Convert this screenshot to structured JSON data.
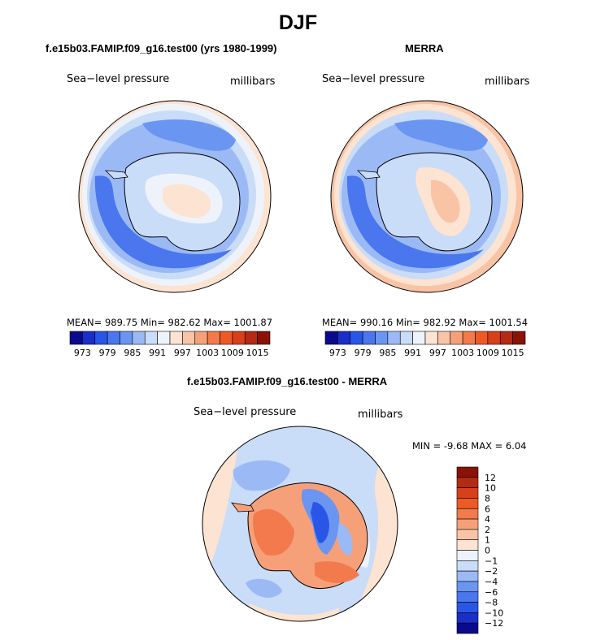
{
  "figure": {
    "title": "DJF"
  },
  "panels": [
    {
      "title": "f.e15b03.FAMIP.f09_g16.test00 (yrs 1980-1999)",
      "left_label": "Sea−level pressure",
      "right_label": "millibars",
      "stats": "MEAN= 989.75   Min= 982.62   Max= 1001.87"
    },
    {
      "title": "MERRA",
      "left_label": "Sea−level pressure",
      "right_label": "millibars",
      "stats": "MEAN= 990.16   Min= 982.92   Max= 1001.54"
    }
  ],
  "shared_colorbar": {
    "ticks": [
      "973",
      "979",
      "985",
      "991",
      "997",
      "1003",
      "1009",
      "1015"
    ],
    "colors": [
      "#0a0a8c",
      "#1a2ec8",
      "#2a56e8",
      "#4a76ee",
      "#6a96f2",
      "#9bbaf5",
      "#c9dcf8",
      "#eef3fb",
      "#fde3d2",
      "#f9c4a5",
      "#f6a07a",
      "#f27a4c",
      "#ee5a26",
      "#d8401a",
      "#b42a12",
      "#8a1206"
    ]
  },
  "diff_panel": {
    "title": "f.e15b03.FAMIP.f09_g16.test00 - MERRA",
    "left_label": "Sea−level pressure",
    "right_label": "millibars",
    "minmax": "MIN =   -9.68 MAX =    6.04",
    "colorbar_labels": [
      "12",
      "10",
      "8",
      "6",
      "4",
      "2",
      "1",
      "0",
      "−1",
      "−2",
      "−4",
      "−6",
      "−8",
      "−10",
      "−12"
    ],
    "colorbar_colors": [
      "#8a1206",
      "#b42a12",
      "#d8401a",
      "#ee5a26",
      "#f27a4c",
      "#f6a07a",
      "#f9c4a5",
      "#fde3d2",
      "#eef3fb",
      "#c9dcf8",
      "#9bbaf5",
      "#6a96f2",
      "#4a76ee",
      "#2a56e8",
      "#1a2ec8",
      "#0a0a8c"
    ]
  },
  "map_data": {
    "projection": "south-polar stereographic",
    "field": "sea-level pressure",
    "season": "DJF"
  }
}
